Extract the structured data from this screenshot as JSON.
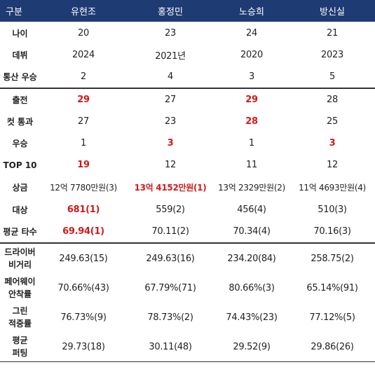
{
  "header": [
    "구분",
    "유현조",
    "홍정민",
    "노승희",
    "방신실"
  ],
  "rows": [
    {
      "label": "나이",
      "values": [
        {
          "text": "20",
          "hl": false
        },
        {
          "text": "23",
          "hl": false
        },
        {
          "text": "24",
          "hl": false
        },
        {
          "text": "21",
          "hl": false
        }
      ]
    },
    {
      "label": "데뷔",
      "values": [
        {
          "text": "2024",
          "hl": false
        },
        {
          "text": "2021년",
          "hl": false
        },
        {
          "text": "2020",
          "hl": false
        },
        {
          "text": "2023",
          "hl": false
        }
      ]
    },
    {
      "label": "통산 우승",
      "values": [
        {
          "text": "2",
          "hl": false
        },
        {
          "text": "4",
          "hl": false
        },
        {
          "text": "3",
          "hl": false
        },
        {
          "text": "5",
          "hl": false
        }
      ]
    },
    {
      "label": "출전",
      "values": [
        {
          "text": "29",
          "hl": true
        },
        {
          "text": "27",
          "hl": false
        },
        {
          "text": "29",
          "hl": true
        },
        {
          "text": "28",
          "hl": false
        }
      ]
    },
    {
      "label": "컷 통과",
      "values": [
        {
          "text": "27",
          "hl": false
        },
        {
          "text": "23",
          "hl": false
        },
        {
          "text": "28",
          "hl": true
        },
        {
          "text": "25",
          "hl": false
        }
      ]
    },
    {
      "label": "우승",
      "values": [
        {
          "text": "1",
          "hl": false
        },
        {
          "text": "3",
          "hl": true
        },
        {
          "text": "1",
          "hl": false
        },
        {
          "text": "3",
          "hl": true
        }
      ]
    },
    {
      "label": "TOP 10",
      "values": [
        {
          "text": "19",
          "hl": true
        },
        {
          "text": "12",
          "hl": false
        },
        {
          "text": "11",
          "hl": false
        },
        {
          "text": "12",
          "hl": false
        }
      ]
    },
    {
      "label": "상금",
      "values": [
        {
          "text": "12억 7780만원(3)",
          "hl": false
        },
        {
          "text": "13억 4152만원(1)",
          "hl": true
        },
        {
          "text": "13억 2329만원(2)",
          "hl": false
        },
        {
          "text": "11억 4693만원(4)",
          "hl": false
        }
      ]
    },
    {
      "label": "대상",
      "values": [
        {
          "text": "681(1)",
          "hl": true
        },
        {
          "text": "559(2)",
          "hl": false
        },
        {
          "text": "456(4)",
          "hl": false
        },
        {
          "text": "510(3)",
          "hl": false
        }
      ]
    },
    {
      "label": "평균 타수",
      "values": [
        {
          "text": "69.94(1)",
          "hl": true
        },
        {
          "text": "70.11(2)",
          "hl": false
        },
        {
          "text": "70.34(4)",
          "hl": false
        },
        {
          "text": "70.16(3)",
          "hl": false
        }
      ]
    },
    {
      "label": "드라이버 비거리",
      "values": [
        {
          "text": "249.63(15)",
          "hl": false
        },
        {
          "text": "249.63(16)",
          "hl": false
        },
        {
          "text": "234.20(84)",
          "hl": false
        },
        {
          "text": "258.75(2)",
          "hl": false
        }
      ]
    },
    {
      "label": "페어웨이 안착률",
      "values": [
        {
          "text": "70.66%(43)",
          "hl": false
        },
        {
          "text": "67.79%(71)",
          "hl": false
        },
        {
          "text": "80.66%(3)",
          "hl": false
        },
        {
          "text": "65.14%(91)",
          "hl": false
        }
      ]
    },
    {
      "label": "그린 적중률",
      "values": [
        {
          "text": "76.73%(9)",
          "hl": false
        },
        {
          "text": "78.73%(2)",
          "hl": false
        },
        {
          "text": "74.43%(23)",
          "hl": false
        },
        {
          "text": "77.12%(5)",
          "hl": false
        }
      ]
    },
    {
      "label": "평균 퍼팅",
      "values": [
        {
          "text": "29.73(18)",
          "hl": false
        },
        {
          "text": "30.11(48)",
          "hl": false
        },
        {
          "text": "29.52(9)",
          "hl": false
        },
        {
          "text": "29.86(26)",
          "hl": false
        }
      ]
    }
  ]
}
